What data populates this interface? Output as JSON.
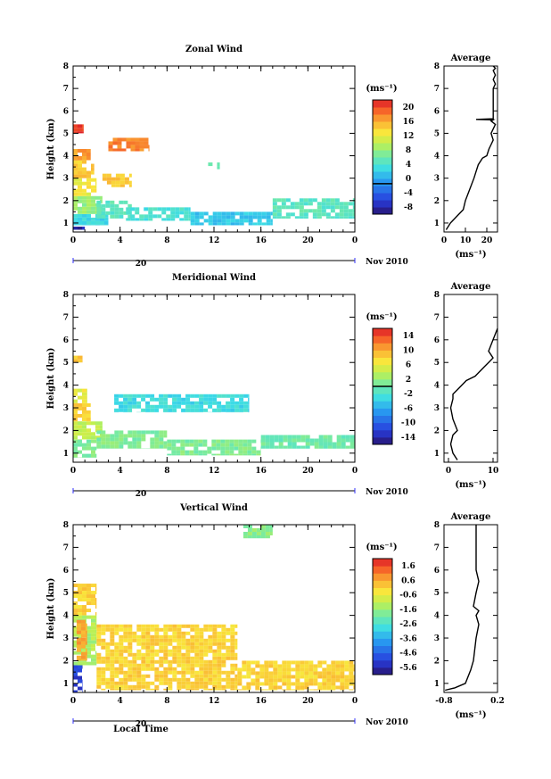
{
  "chart_data": [
    {
      "type": "heatmap",
      "title": "Zonal Wind",
      "ylabel": "Height (km)",
      "xlabel": "",
      "unit_label": "(ms⁻¹)",
      "date_label": "Nov 2010",
      "day_label": "20",
      "xlim": [
        0,
        24
      ],
      "ylim": [
        0.6,
        8
      ],
      "x_ticks": [
        "0",
        "4",
        "8",
        "12",
        "16",
        "20",
        "0"
      ],
      "y_ticks": [
        "1",
        "2",
        "3",
        "4",
        "5",
        "6",
        "7",
        "8"
      ],
      "colorbar": {
        "min": -8,
        "max": 22,
        "zero_line": 0,
        "ticks": [
          "-8",
          "-4",
          "0",
          "4",
          "8",
          "12",
          "16",
          "20"
        ]
      },
      "regions": [
        {
          "x": [
            0,
            3
          ],
          "y": [
            0.9,
            1.4
          ],
          "v": 4
        },
        {
          "x": [
            0,
            1
          ],
          "y": [
            0.7,
            1.0
          ],
          "v": -6
        },
        {
          "x": [
            0,
            2.5
          ],
          "y": [
            1.4,
            2.2
          ],
          "v": 9
        },
        {
          "x": [
            0,
            2
          ],
          "y": [
            2.2,
            3.0
          ],
          "v": 13
        },
        {
          "x": [
            0,
            1.8
          ],
          "y": [
            3.0,
            3.8
          ],
          "v": 15
        },
        {
          "x": [
            0,
            1.5
          ],
          "y": [
            3.8,
            4.3
          ],
          "v": 17
        },
        {
          "x": [
            0,
            0.9
          ],
          "y": [
            5.0,
            5.4
          ],
          "v": 21
        },
        {
          "x": [
            2,
            5
          ],
          "y": [
            1.2,
            2.0
          ],
          "v": 6
        },
        {
          "x": [
            2.5,
            5
          ],
          "y": [
            2.6,
            3.2
          ],
          "v": 15
        },
        {
          "x": [
            3,
            6.5
          ],
          "y": [
            4.2,
            4.8
          ],
          "v": 18
        },
        {
          "x": [
            4.5,
            10
          ],
          "y": [
            1.1,
            1.7
          ],
          "v": 5
        },
        {
          "x": [
            10,
            17
          ],
          "y": [
            0.9,
            1.5
          ],
          "v": 3
        },
        {
          "x": [
            17,
            24
          ],
          "y": [
            1.2,
            2.1
          ],
          "v": 6
        },
        {
          "x": [
            11.5,
            12.5
          ],
          "y": [
            3.4,
            3.7
          ],
          "v": 6
        }
      ],
      "average": {
        "x_ticks": [
          "0",
          "10",
          "20"
        ],
        "xlim": [
          0,
          25
        ],
        "xlabel": "(ms⁻¹)",
        "title": "Average",
        "x": [
          1,
          3,
          6,
          9,
          10,
          12,
          14,
          15,
          16,
          18,
          20,
          21,
          22,
          23,
          22,
          23,
          24,
          22,
          23,
          15,
          23,
          23,
          24,
          23,
          24,
          23,
          24,
          23
        ],
        "y": [
          0.7,
          1.0,
          1.3,
          1.6,
          2.0,
          2.5,
          3.0,
          3.3,
          3.6,
          3.9,
          4.0,
          4.3,
          4.5,
          4.7,
          5.0,
          5.2,
          5.4,
          5.55,
          5.6,
          5.62,
          5.65,
          7.0,
          7.2,
          7.4,
          7.6,
          7.8,
          7.9,
          8.0
        ]
      }
    },
    {
      "type": "heatmap",
      "title": "Meridional Wind",
      "ylabel": "Height (km)",
      "xlabel": "",
      "unit_label": "(ms⁻¹)",
      "date_label": "Nov 2010",
      "day_label": "20",
      "xlim": [
        0,
        24
      ],
      "ylim": [
        0.6,
        8
      ],
      "x_ticks": [
        "0",
        "4",
        "8",
        "12",
        "16",
        "20",
        "0"
      ],
      "y_ticks": [
        "1",
        "2",
        "3",
        "4",
        "5",
        "6",
        "7",
        "8"
      ],
      "colorbar": {
        "min": -16,
        "max": 16,
        "zero_line": 0,
        "ticks": [
          "-14",
          "-10",
          "-6",
          "-2",
          "2",
          "6",
          "10",
          "14"
        ]
      },
      "regions": [
        {
          "x": [
            0,
            2
          ],
          "y": [
            0.8,
            1.6
          ],
          "v": 1
        },
        {
          "x": [
            0,
            2.5
          ],
          "y": [
            1.6,
            2.4
          ],
          "v": 4
        },
        {
          "x": [
            0,
            1.5
          ],
          "y": [
            2.4,
            3.2
          ],
          "v": 8
        },
        {
          "x": [
            0,
            1.2
          ],
          "y": [
            3.2,
            4.0
          ],
          "v": 6
        },
        {
          "x": [
            0,
            0.8
          ],
          "y": [
            5.0,
            5.3
          ],
          "v": 9
        },
        {
          "x": [
            2,
            8
          ],
          "y": [
            1.2,
            2.0
          ],
          "v": 1
        },
        {
          "x": [
            3.5,
            15
          ],
          "y": [
            2.8,
            3.6
          ],
          "v": -3
        },
        {
          "x": [
            8,
            16
          ],
          "y": [
            0.9,
            1.6
          ],
          "v": 1
        },
        {
          "x": [
            16,
            24
          ],
          "y": [
            1.2,
            1.8
          ],
          "v": 0
        }
      ],
      "average": {
        "x_ticks": [
          "0",
          "10"
        ],
        "xlim": [
          -1,
          11
        ],
        "xlabel": "(ms⁻¹)",
        "title": "Average",
        "x": [
          2,
          1,
          0.5,
          1,
          2,
          1,
          0.5,
          1,
          1,
          2,
          3,
          4,
          6,
          8,
          9,
          10,
          9,
          10,
          11
        ],
        "y": [
          0.7,
          1.0,
          1.4,
          1.8,
          2.0,
          2.5,
          3.0,
          3.4,
          3.6,
          3.8,
          4.0,
          4.2,
          4.4,
          4.8,
          5.0,
          5.2,
          5.5,
          6.0,
          6.5
        ]
      }
    },
    {
      "type": "heatmap",
      "title": "Vertical Wind",
      "ylabel": "Height (km)",
      "xlabel": "Local Time",
      "unit_label": "(ms⁻¹)",
      "date_label": "Nov 2010",
      "day_label": "20",
      "xlim": [
        0,
        24
      ],
      "ylim": [
        0.6,
        8
      ],
      "x_ticks": [
        "0",
        "4",
        "8",
        "12",
        "16",
        "20",
        "0"
      ],
      "y_ticks": [
        "1",
        "2",
        "3",
        "4",
        "5",
        "6",
        "7",
        "8"
      ],
      "colorbar": {
        "min": -6,
        "max": 2,
        "ticks": [
          "-5.6",
          "-4.6",
          "-3.6",
          "-2.6",
          "-1.6",
          "-0.6",
          "0.6",
          "1.6"
        ]
      },
      "regions": [
        {
          "x": [
            0,
            0.8
          ],
          "y": [
            0.6,
            1.8
          ],
          "v": -5
        },
        {
          "x": [
            0,
            2
          ],
          "y": [
            1.8,
            4.0
          ],
          "v": -1.2
        },
        {
          "x": [
            0.3,
            1.2
          ],
          "y": [
            2.0,
            3.8
          ],
          "v": 0.6
        },
        {
          "x": [
            0,
            2
          ],
          "y": [
            4.0,
            5.4
          ],
          "v": 0
        },
        {
          "x": [
            2,
            14
          ],
          "y": [
            0.7,
            3.6
          ],
          "v": 0
        },
        {
          "x": [
            14,
            24
          ],
          "y": [
            0.7,
            2.0
          ],
          "v": 0
        },
        {
          "x": [
            14.5,
            17
          ],
          "y": [
            7.4,
            8.0
          ],
          "v": -1.6
        }
      ],
      "average": {
        "x_ticks": [
          "-0.8",
          "0.2"
        ],
        "xlim": [
          -0.8,
          0.2
        ],
        "xlabel": "(ms⁻¹)",
        "title": "Average",
        "x": [
          -0.78,
          -0.6,
          -0.4,
          -0.3,
          -0.25,
          -0.2,
          -0.15,
          -0.2,
          -0.15,
          -0.25,
          -0.2,
          -0.15,
          -0.2,
          -0.2
        ],
        "y": [
          0.7,
          0.8,
          1.0,
          1.6,
          2.0,
          3.0,
          3.6,
          4.0,
          4.2,
          4.4,
          5.0,
          5.5,
          6.0,
          8.0
        ]
      }
    }
  ]
}
